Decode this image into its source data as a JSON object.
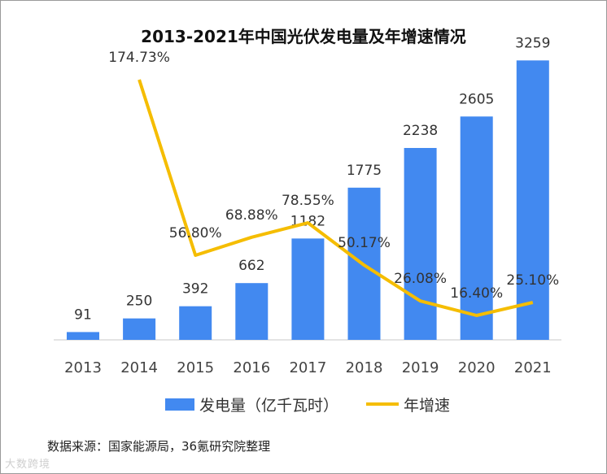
{
  "chart_data": {
    "type": "bar+line",
    "title": "2013-2021年中国光伏发电量及年增速情况",
    "categories": [
      "2013",
      "2014",
      "2015",
      "2016",
      "2017",
      "2018",
      "2019",
      "2020",
      "2021"
    ],
    "series": [
      {
        "name": "发电量（亿千瓦时）",
        "type": "bar",
        "color": "#4289f0",
        "values": [
          91,
          250,
          392,
          662,
          1182,
          1775,
          2238,
          2605,
          3259
        ],
        "labels": [
          "91",
          "250",
          "392",
          "662",
          "1182",
          "1775",
          "2238",
          "2605",
          "3259"
        ]
      },
      {
        "name": "年增速",
        "type": "line",
        "color": "#f5bd00",
        "values": [
          null,
          174.73,
          56.8,
          68.88,
          78.55,
          50.17,
          26.08,
          16.4,
          25.1
        ],
        "labels": [
          "",
          "174.73%",
          "56.80%",
          "68.88%",
          "78.55%",
          "50.17%",
          "26.08%",
          "16.40%",
          "25.10%"
        ]
      }
    ],
    "ylim_bar": [
      0,
      3300
    ],
    "ylim_line": [
      0,
      190
    ],
    "legend": [
      "发电量（亿千瓦时）",
      "年增速"
    ],
    "legend_position": "bottom"
  },
  "source_note": "数据来源：国家能源局，36氪研究院整理",
  "watermark": "大数跨境"
}
